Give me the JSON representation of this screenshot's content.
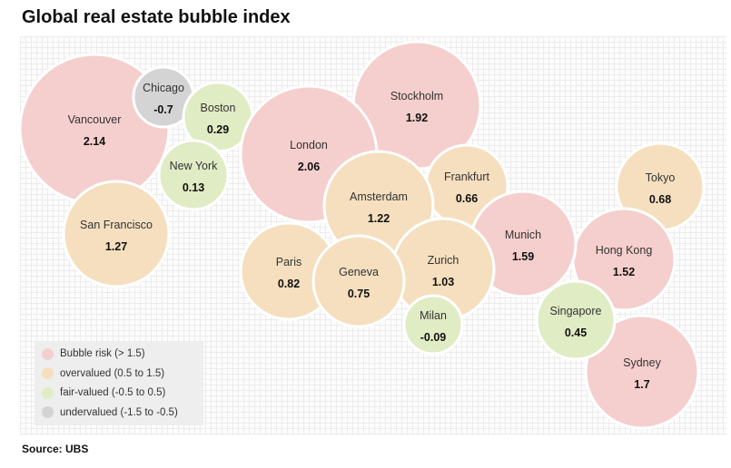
{
  "title": "Global real estate bubble index",
  "source": "Source: UBS",
  "colors": {
    "bubble": "#f5cfcd",
    "overvalued": "#f5dfbf",
    "fair": "#e0ecc4",
    "undervalued": "#d4d4d4"
  },
  "legend": [
    {
      "key": "bubble",
      "label": "Bubble risk (> 1.5)"
    },
    {
      "key": "overvalued",
      "label": "overvalued (0.5 to 1.5)"
    },
    {
      "key": "fair",
      "label": "fair-valued (-0.5 to 0.5)"
    },
    {
      "key": "undervalued",
      "label": "undervalued (-1.5 to -0.5)"
    }
  ],
  "chart_data": {
    "type": "bubble",
    "title": "Global real estate bubble index",
    "categories_legend": [
      "Bubble risk (> 1.5)",
      "overvalued (0.5 to 1.5)",
      "fair-valued (-0.5 to 0.5)",
      "undervalued (-1.5 to -0.5)"
    ],
    "cities": [
      {
        "name": "Vancouver",
        "value": 2.14,
        "category": "bubble"
      },
      {
        "name": "Chicago",
        "value": -0.7,
        "category": "undervalued"
      },
      {
        "name": "Boston",
        "value": 0.29,
        "category": "fair"
      },
      {
        "name": "New York",
        "value": 0.13,
        "category": "fair"
      },
      {
        "name": "San Francisco",
        "value": 1.27,
        "category": "overvalued"
      },
      {
        "name": "London",
        "value": 2.06,
        "category": "bubble"
      },
      {
        "name": "Stockholm",
        "value": 1.92,
        "category": "bubble"
      },
      {
        "name": "Amsterdam",
        "value": 1.22,
        "category": "overvalued"
      },
      {
        "name": "Frankfurt",
        "value": 0.66,
        "category": "overvalued"
      },
      {
        "name": "Tokyo",
        "value": 0.68,
        "category": "overvalued"
      },
      {
        "name": "Paris",
        "value": 0.82,
        "category": "overvalued"
      },
      {
        "name": "Geneva",
        "value": 0.75,
        "category": "overvalued"
      },
      {
        "name": "Zurich",
        "value": 1.03,
        "category": "overvalued"
      },
      {
        "name": "Munich",
        "value": 1.59,
        "category": "bubble"
      },
      {
        "name": "Hong Kong",
        "value": 1.52,
        "category": "bubble"
      },
      {
        "name": "Milan",
        "value": -0.09,
        "category": "fair"
      },
      {
        "name": "Singapore",
        "value": 0.45,
        "category": "fair"
      },
      {
        "name": "Sydney",
        "value": 1.7,
        "category": "bubble"
      }
    ]
  }
}
